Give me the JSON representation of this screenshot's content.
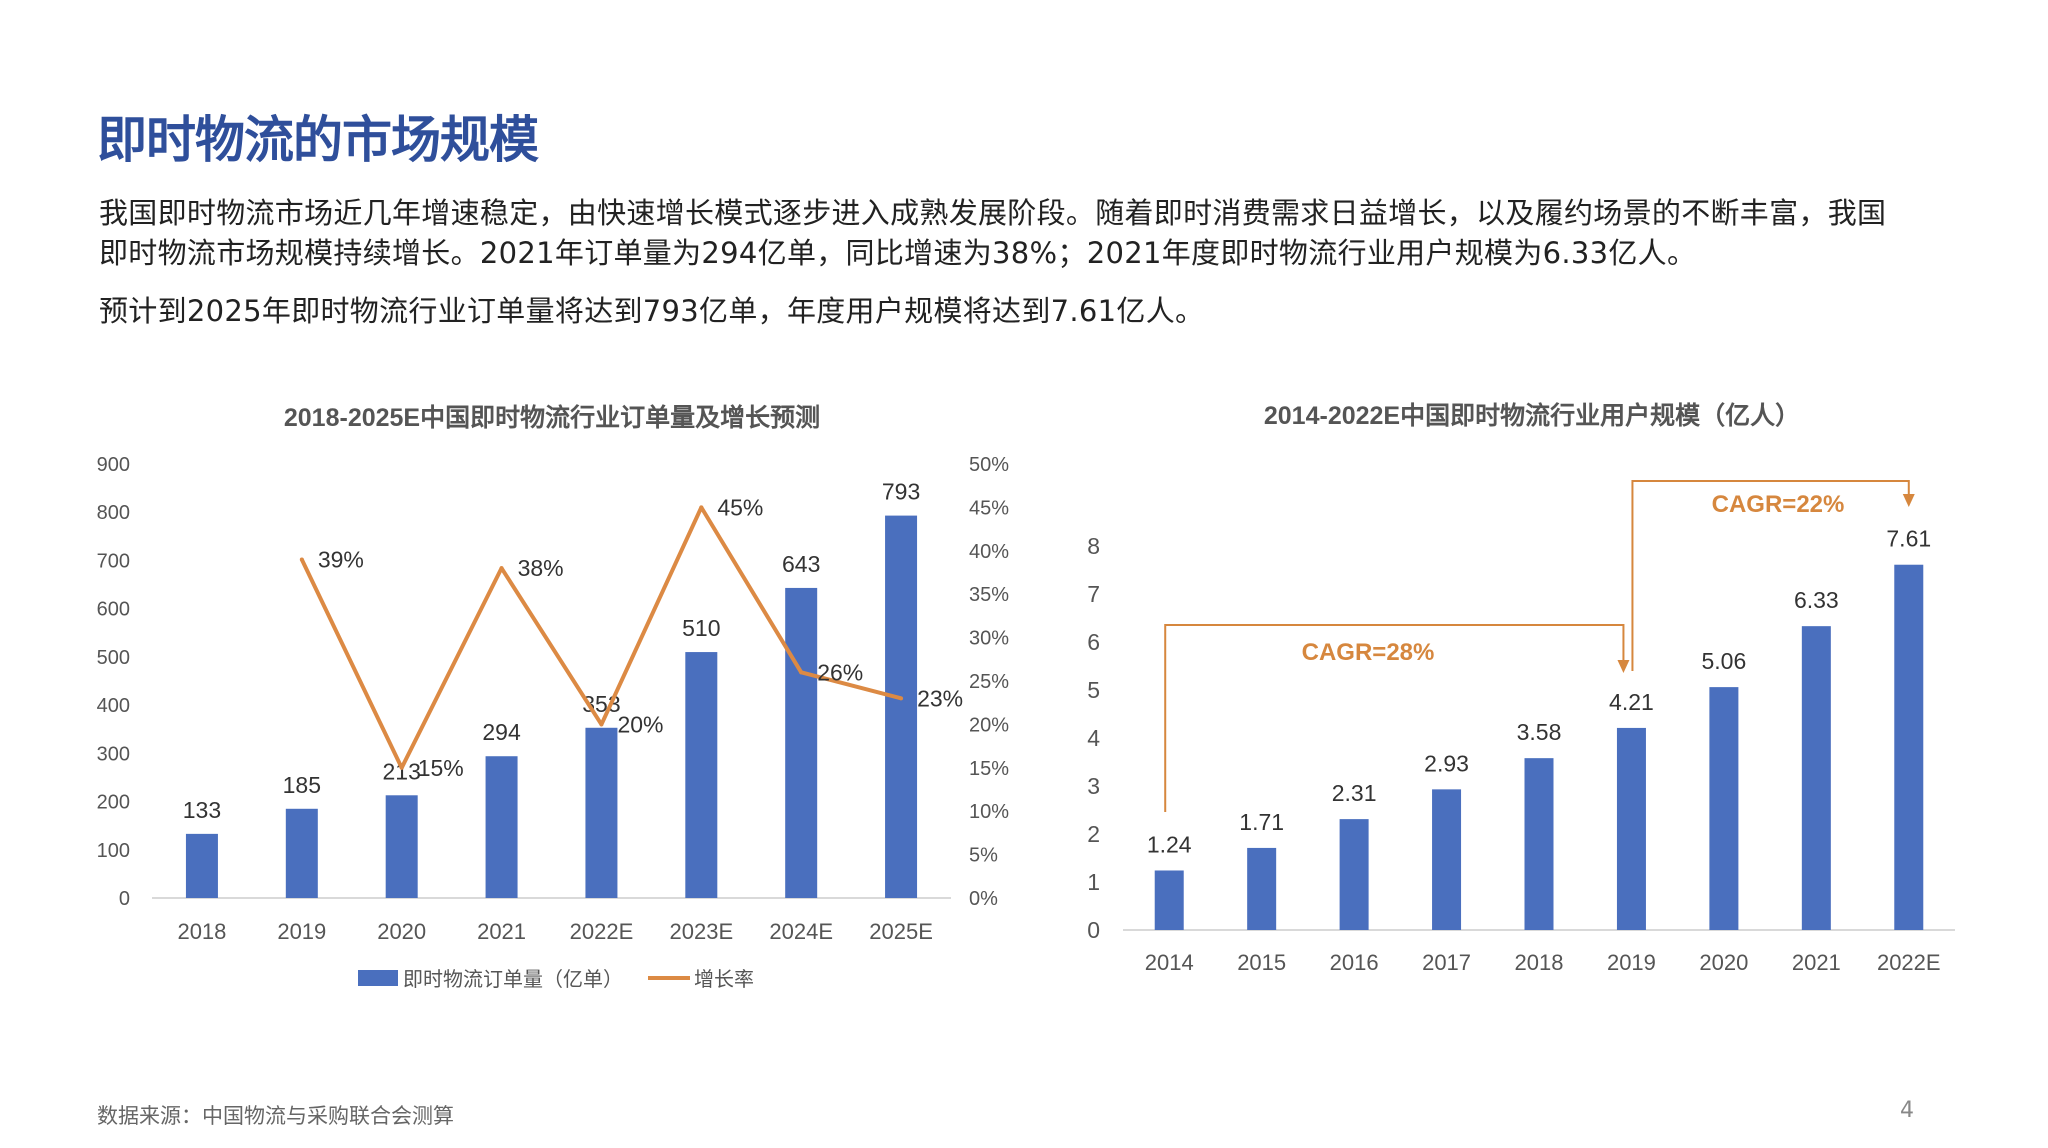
{
  "header": {
    "title": "即时物流的市场规模"
  },
  "body": {
    "lines": [
      "我国即时物流市场近几年增速稳定，由快速增长模式逐步进入成熟发展阶段。随着即时消费需求日益增长，以及履约场景的不断丰富，我国",
      "即时物流市场规模持续增长。2021年订单量为294亿单，同比增速为38%；2021年度即时物流行业用户规模为6.33亿人。",
      "预计到2025年即时物流行业订单量将达到793亿单，年度用户规模将达到7.61亿人。"
    ]
  },
  "footer": {
    "source": "数据来源：中国物流与采购联合会测算",
    "page": "4"
  },
  "colors": {
    "bar": "#4a6fbe",
    "line": "#dc8a44",
    "title": "#2f4f9b",
    "annotation": "#d6873e"
  },
  "chart_data": [
    {
      "type": "bar+line",
      "title": "2018-2025E中国即时物流行业订单量及增长预测",
      "categories": [
        "2018",
        "2019",
        "2020",
        "2021",
        "2022E",
        "2023E",
        "2024E",
        "2025E"
      ],
      "y_ticks": [
        "0",
        "100",
        "200",
        "300",
        "400",
        "500",
        "600",
        "700",
        "800",
        "900"
      ],
      "y2_ticks": [
        "0%",
        "5%",
        "10%",
        "15%",
        "20%",
        "25%",
        "30%",
        "35%",
        "40%",
        "45%",
        "50%"
      ],
      "ylim": [
        0,
        900
      ],
      "y2lim": [
        0,
        50
      ],
      "series": [
        {
          "name": "即时物流订单量（亿单）",
          "kind": "bar",
          "axis": "left",
          "values": [
            133,
            185,
            213,
            294,
            353,
            510,
            643,
            793
          ],
          "labels": [
            "133",
            "185",
            "213",
            "294",
            "353",
            "510",
            "643",
            "793"
          ]
        },
        {
          "name": "增长率",
          "kind": "line",
          "axis": "right",
          "values": [
            null,
            39,
            15,
            38,
            20,
            45,
            26,
            23
          ],
          "labels": [
            "",
            "39%",
            "15%",
            "38%",
            "20%",
            "45%",
            "26%",
            "23%"
          ]
        }
      ],
      "legend": "bottom",
      "grid": false
    },
    {
      "type": "bar",
      "title": "2014-2022E中国即时物流行业用户规模（亿人）",
      "categories": [
        "2014",
        "2015",
        "2016",
        "2017",
        "2018",
        "2019",
        "2020",
        "2021",
        "2022E"
      ],
      "values": [
        1.24,
        1.71,
        2.31,
        2.93,
        3.58,
        4.21,
        5.06,
        6.33,
        7.61
      ],
      "labels": [
        "1.24",
        "1.71",
        "2.31",
        "2.93",
        "3.58",
        "4.21",
        "5.06",
        "6.33",
        "7.61"
      ],
      "y_ticks": [
        "0",
        "1",
        "2",
        "3",
        "4",
        "5",
        "6",
        "7",
        "8"
      ],
      "ylim": [
        0,
        8
      ],
      "annotations": [
        {
          "text": "CAGR=28%",
          "from": "2014",
          "to": "2019"
        },
        {
          "text": "CAGR=22%",
          "from": "2019",
          "to": "2022E"
        }
      ],
      "grid": false
    }
  ]
}
